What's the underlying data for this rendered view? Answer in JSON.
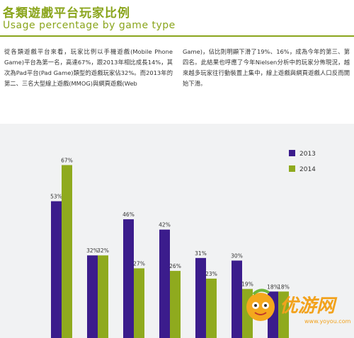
{
  "header": {
    "title": "各類遊戲平台玩家比例",
    "subtitle": "Usage percentage by game type"
  },
  "body_text": {
    "left": "從各類遊戲平台來看，玩家比例以手機遊戲(Mobile Phone Game)平台為第一名，高達67%，跟2013年相比成長14%，其次為Pad平台(Pad Game)類型的遊戲玩家佔32%。而2013年的第二、三名大型線上遊戲(MMOG)與網頁遊戲(Web",
    "right": "Game)，佔比則明顯下滑了19%、16%，成為今年的第三、第四名。此結果也呼應了今年Nielsen分析中的玩家分佈現況，越來越多玩家往行動裝置上集中，線上遊戲與網頁遊戲人口反而開始下滑。"
  },
  "watermark": {
    "text": "优游网",
    "url": "www.yoyou.com"
  },
  "colors": {
    "accent": "#8aa51c",
    "series_2013": "#3b1c8c",
    "series_2014": "#8faa1e",
    "panel": "#f1f2f3"
  },
  "chart_data": {
    "type": "bar",
    "title": "",
    "xlabel": "",
    "ylabel": "",
    "ylim": [
      0,
      70
    ],
    "grid": false,
    "legend_placement": "top-right",
    "series": [
      {
        "name": "2013",
        "values": [
          53,
          32,
          46,
          42,
          31,
          30,
          18,
          null
        ]
      },
      {
        "name": "2014",
        "values": [
          67,
          32,
          27,
          26,
          23,
          19,
          18,
          null
        ]
      }
    ],
    "value_labels_2013": [
      "53%",
      "32%",
      "46%",
      "42%",
      "31%",
      "30%",
      "18%",
      ""
    ],
    "value_labels_2014": [
      "67%",
      "32%",
      "27%",
      "26%",
      "23%",
      "19%",
      "18%",
      ""
    ]
  }
}
